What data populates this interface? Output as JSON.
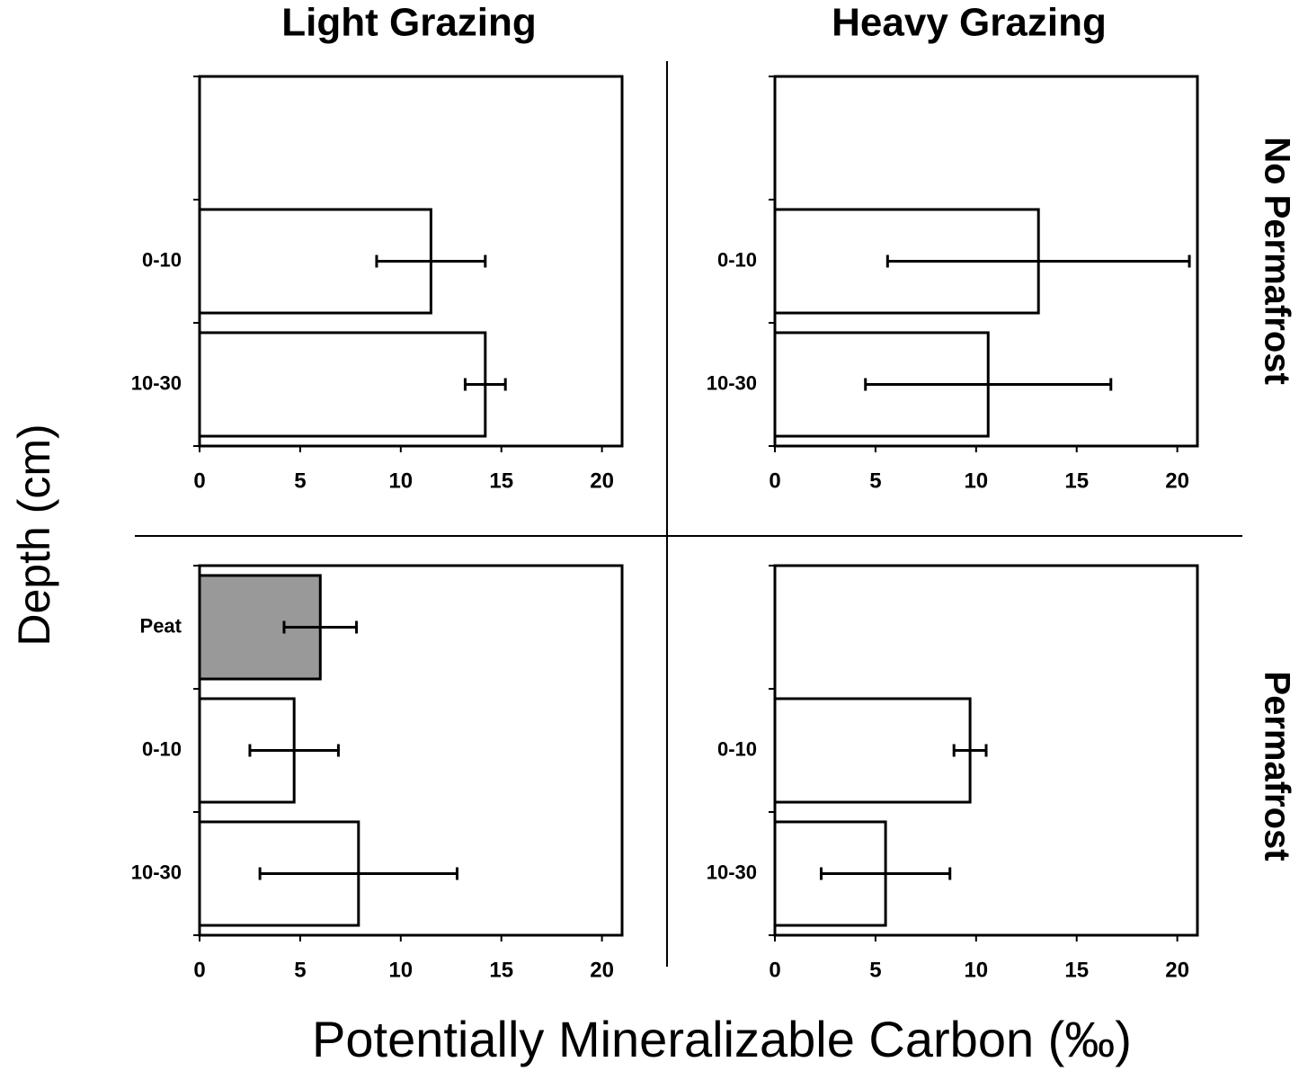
{
  "column_titles": [
    "Light Grazing",
    "Heavy Grazing"
  ],
  "row_titles": [
    "No Permafrost",
    "Permafrost"
  ],
  "xlabel": "Potentially Mineralizable Carbon  (‰)",
  "ylabel": "Depth (cm)",
  "chart_data": [
    {
      "type": "bar",
      "orientation": "horizontal",
      "categories": [
        null,
        "0-10",
        "10-30"
      ],
      "values": [
        null,
        11.5,
        14.2
      ],
      "errors": [
        null,
        2.7,
        1.0
      ],
      "colors": [
        "#ffffff",
        "#ffffff",
        "#ffffff"
      ],
      "xlim": [
        0,
        21
      ],
      "xticks": [
        0,
        5,
        10,
        15,
        20
      ]
    },
    {
      "type": "bar",
      "orientation": "horizontal",
      "categories": [
        null,
        "0-10",
        "10-30"
      ],
      "values": [
        null,
        13.1,
        10.6
      ],
      "errors": [
        null,
        7.5,
        6.1
      ],
      "colors": [
        "#ffffff",
        "#ffffff",
        "#ffffff"
      ],
      "xlim": [
        0,
        21
      ],
      "xticks": [
        0,
        5,
        10,
        15,
        20
      ]
    },
    {
      "type": "bar",
      "orientation": "horizontal",
      "categories": [
        "Peat",
        "0-10",
        "10-30"
      ],
      "values": [
        6.0,
        4.7,
        7.9
      ],
      "errors": [
        1.8,
        2.2,
        4.9
      ],
      "colors": [
        "#999999",
        "#ffffff",
        "#ffffff"
      ],
      "xlim": [
        0,
        21
      ],
      "xticks": [
        0,
        5,
        10,
        15,
        20
      ]
    },
    {
      "type": "bar",
      "orientation": "horizontal",
      "categories": [
        null,
        "0-10",
        "10-30"
      ],
      "values": [
        null,
        9.7,
        5.5
      ],
      "errors": [
        null,
        0.8,
        3.2
      ],
      "colors": [
        "#ffffff",
        "#ffffff",
        "#ffffff"
      ],
      "xlim": [
        0,
        21
      ],
      "xticks": [
        0,
        5,
        10,
        15,
        20
      ]
    }
  ]
}
